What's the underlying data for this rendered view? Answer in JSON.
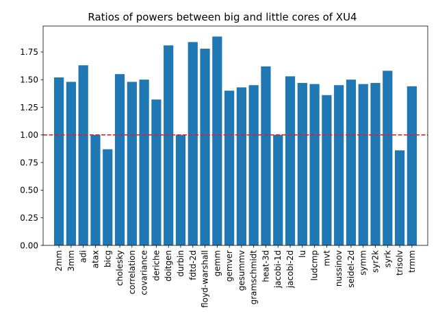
{
  "chart_data": {
    "type": "bar",
    "title": "Ratios of powers between big and little cores of XU4",
    "xlabel": "",
    "ylabel": "",
    "categories": [
      "2mm",
      "3mm",
      "adi",
      "atax",
      "bicg",
      "cholesky",
      "correlation",
      "covariance",
      "deriche",
      "doitgen",
      "durbin",
      "fdtd-2d",
      "floyd-warshall",
      "gemm",
      "gemver",
      "gesummv",
      "gramschmidt",
      "heat-3d",
      "jacobi-1d",
      "jacobi-2d",
      "lu",
      "ludcmp",
      "mvt",
      "nussinov",
      "seidel-2d",
      "symm",
      "syr2k",
      "syrk",
      "trisolv",
      "trmm"
    ],
    "values": [
      1.52,
      1.48,
      1.63,
      1.0,
      0.87,
      1.55,
      1.48,
      1.5,
      1.32,
      1.81,
      1.0,
      1.84,
      1.78,
      1.89,
      1.4,
      1.43,
      1.45,
      1.62,
      1.0,
      1.53,
      1.47,
      1.46,
      1.36,
      1.45,
      1.5,
      1.46,
      1.47,
      1.58,
      0.86,
      1.44
    ],
    "ylim": [
      0,
      1.985
    ],
    "yticks": [
      0.0,
      0.25,
      0.5,
      0.75,
      1.0,
      1.25,
      1.5,
      1.75
    ],
    "ytick_labels": [
      "0.00",
      "0.25",
      "0.50",
      "0.75",
      "1.00",
      "1.25",
      "1.50",
      "1.75"
    ],
    "reference_line": {
      "y": 1.0,
      "color": "#d62728",
      "style": "dashed"
    },
    "bar_color": "#1f77b4",
    "grid": false,
    "legend": "none"
  }
}
